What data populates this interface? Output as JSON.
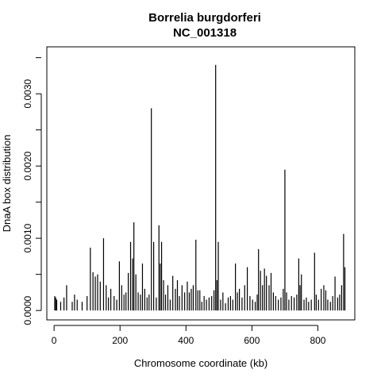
{
  "chart_data": {
    "type": "bar",
    "title": "Borrelia burgdorferi",
    "subtitle": "NC_001318",
    "xlabel": "Chromosome coordinate (kb)",
    "ylabel": "DnaA box distribution",
    "xlim": [
      -22,
      912
    ],
    "ylim": [
      -0.00013,
      0.00365
    ],
    "xticks": [
      0,
      200,
      400,
      600,
      800
    ],
    "xtick_labels": [
      "0",
      "200",
      "400",
      "600",
      "800"
    ],
    "yticks": [
      0.0,
      0.001,
      0.002,
      0.003
    ],
    "ytick_labels": [
      "0.0000",
      "0.0010",
      "0.0020",
      "0.0030"
    ],
    "grid": false,
    "x": [
      2,
      5,
      8,
      20,
      30,
      38,
      55,
      62,
      70,
      85,
      100,
      110,
      118,
      125,
      132,
      140,
      150,
      158,
      165,
      172,
      182,
      190,
      198,
      205,
      212,
      218,
      225,
      232,
      238,
      242,
      248,
      255,
      262,
      268,
      275,
      282,
      288,
      295,
      302,
      310,
      318,
      322,
      326,
      332,
      338,
      345,
      352,
      360,
      368,
      374,
      380,
      388,
      396,
      404,
      410,
      416,
      422,
      430,
      436,
      442,
      448,
      455,
      462,
      470,
      478,
      485,
      490,
      494,
      498,
      505,
      512,
      520,
      528,
      535,
      542,
      550,
      556,
      562,
      570,
      578,
      586,
      594,
      602,
      610,
      616,
      620,
      626,
      632,
      638,
      644,
      652,
      658,
      665,
      672,
      680,
      688,
      695,
      700,
      705,
      712,
      720,
      728,
      736,
      742,
      746,
      750,
      758,
      765,
      772,
      780,
      790,
      795,
      802,
      810,
      818,
      824,
      830,
      838,
      845,
      852,
      860,
      866,
      872,
      878,
      882
    ],
    "y": [
      0.0002,
      0.00018,
      0.00015,
      0.00012,
      0.00018,
      0.00035,
      0.00012,
      0.00022,
      0.00015,
      0.00012,
      0.0002,
      0.00087,
      0.00053,
      0.00047,
      0.0005,
      0.0004,
      0.001,
      0.00035,
      0.00018,
      0.0003,
      0.0002,
      0.00015,
      0.00068,
      0.00035,
      0.00022,
      0.00025,
      0.00052,
      0.00095,
      0.00072,
      0.00122,
      0.0005,
      0.00025,
      0.00022,
      0.00065,
      0.0003,
      0.00018,
      0.00022,
      0.0028,
      0.00095,
      0.00018,
      0.00118,
      0.00065,
      0.00095,
      0.00042,
      0.00022,
      0.00035,
      0.00015,
      0.00048,
      0.0003,
      0.00042,
      0.0002,
      0.00035,
      0.00025,
      0.0004,
      0.00025,
      0.0003,
      0.00035,
      0.00098,
      0.00028,
      0.00028,
      0.00012,
      0.0002,
      0.00015,
      0.00018,
      0.0002,
      0.00028,
      0.0034,
      0.00042,
      0.00095,
      0.00015,
      0.00025,
      0.0001,
      0.00018,
      0.0002,
      0.00015,
      0.00065,
      0.00025,
      0.0003,
      0.00018,
      0.00035,
      0.0006,
      0.0002,
      0.00015,
      0.00012,
      0.00022,
      0.00085,
      0.00055,
      0.00035,
      0.00058,
      0.00048,
      0.00035,
      0.00052,
      0.00025,
      0.0002,
      0.00015,
      0.00018,
      0.0003,
      0.00195,
      0.00025,
      0.00015,
      0.0002,
      0.00018,
      0.00022,
      0.00072,
      0.00035,
      0.0005,
      0.00015,
      0.00018,
      0.00012,
      0.00015,
      0.0008,
      0.00022,
      0.00015,
      0.0003,
      0.00035,
      0.00028,
      0.00015,
      0.00012,
      0.0002,
      0.00047,
      0.00018,
      0.00022,
      0.00035,
      0.00106,
      0.0006
    ]
  }
}
